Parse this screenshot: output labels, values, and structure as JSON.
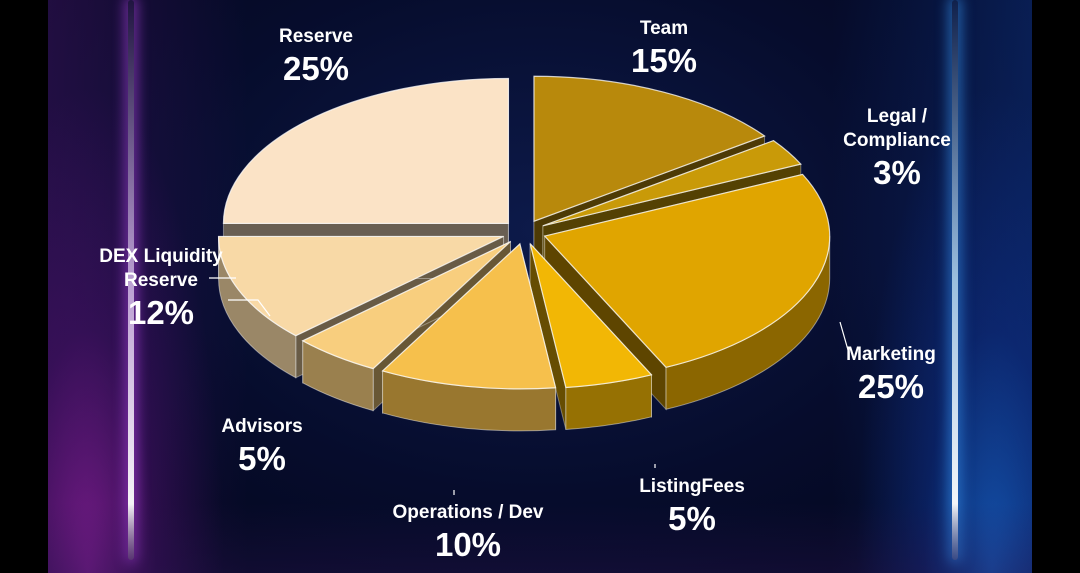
{
  "chart_data": {
    "type": "pie",
    "title": "",
    "style": "3d-exploded",
    "slices": [
      {
        "label": "Team",
        "value": 15,
        "value_label": "15%",
        "color": "#B8890C"
      },
      {
        "label": "Legal / Compliance",
        "value": 3,
        "value_label": "3%",
        "color": "#C99A08"
      },
      {
        "label": "Marketing",
        "value": 25,
        "value_label": "25%",
        "color": "#E0A500"
      },
      {
        "label": "ListingFees",
        "value": 5,
        "value_label": "5%",
        "color": "#F2B705"
      },
      {
        "label": "Operations / Dev",
        "value": 10,
        "value_label": "10%",
        "color": "#F6C04C"
      },
      {
        "label": "Advisors",
        "value": 5,
        "value_label": "5%",
        "color": "#F8CE7E"
      },
      {
        "label": "DEX Liquidity Reserve",
        "value": 12,
        "value_label": "12%",
        "color": "#F8D9A6"
      },
      {
        "label": "Reserve",
        "value": 25,
        "value_label": "25%",
        "color": "#FBE3C6"
      }
    ]
  }
}
